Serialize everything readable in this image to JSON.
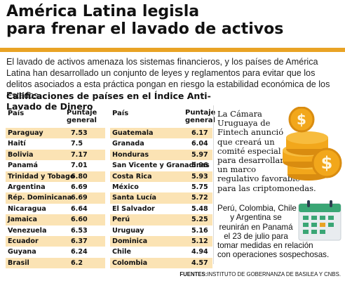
{
  "headline": {
    "line1": "América Latina legisla",
    "line2": "para frenar el lavado de activos"
  },
  "intro": "El lavado de activos amenaza los sistemas financieros, y los países de América Latina han desarrollado un conjunto de leyes y reglamentos para evitar que los delitos asociados a esta práctica pongan en riesgo la estabilidad económica de los Estados.",
  "table_title": "Calificaciones de países en el Índice Anti-Lavado de Dinero",
  "table": {
    "col_country": "País",
    "col_score_line1": "Puntaje",
    "col_score_line2": "general",
    "left_rows": [
      {
        "country": "Paraguay",
        "score": "7.53"
      },
      {
        "country": "Haití",
        "score": "7.5"
      },
      {
        "country": "Bolivia",
        "score": "7.17"
      },
      {
        "country": "Panamá",
        "score": "7.01"
      },
      {
        "country": "Trinidad y Tobago",
        "score": "6.80"
      },
      {
        "country": "Argentina",
        "score": "6.69"
      },
      {
        "country": "Rép. Dominicana",
        "score": "6.69"
      },
      {
        "country": "Nicaragua",
        "score": "6.64"
      },
      {
        "country": "Jamaica",
        "score": "6.60"
      },
      {
        "country": "Venezuela",
        "score": "6.53"
      },
      {
        "country": "Ecuador",
        "score": "6.37"
      },
      {
        "country": "Guyana",
        "score": "6.24"
      },
      {
        "country": "Brasil",
        "score": "6.2"
      }
    ],
    "right_rows": [
      {
        "country": "Guatemala",
        "score": "6.17"
      },
      {
        "country": "Granada",
        "score": "6.04"
      },
      {
        "country": "Honduras",
        "score": "5.97"
      },
      {
        "country": "San Vicente y Granadinas",
        "score": "5.96"
      },
      {
        "country": "Costa Rica",
        "score": "5.93"
      },
      {
        "country": "México",
        "score": "5.75"
      },
      {
        "country": "Santa Lucía",
        "score": "5.72"
      },
      {
        "country": "El Salvador",
        "score": "5.48"
      },
      {
        "country": "Perú",
        "score": "5.25"
      },
      {
        "country": "Uruguay",
        "score": "5.16"
      },
      {
        "country": "Dominica",
        "score": "5.12"
      },
      {
        "country": "Chile",
        "score": "4.94"
      },
      {
        "country": "Colombia",
        "score": "4.57"
      }
    ]
  },
  "note1_lines": [
    "La Cámara",
    "Uruguaya de",
    "Fintech anunció",
    "que creará un",
    "comité especial",
    "para desarrollar",
    "un marco",
    "regulativo favorable",
    "para las criptomonedas."
  ],
  "note2_lines": [
    "Perú, Colombia, Chile",
    "y Argentina se",
    "reunirán en Panamá",
    "el 23 de julio para",
    "tomar medidas en relación",
    "con operaciones sospechosas."
  ],
  "footer": {
    "label": "FUENTES:",
    "text": "INSTITUTO DE GOBERNANZA DE BASILEA Y CNBS."
  },
  "colors": {
    "accent": "#e9a325",
    "row_highlight": "#fbe3b4",
    "coin": "#f2a71b",
    "calendar_green": "#3aa675"
  },
  "icons": [
    "coins-icon",
    "calendar-icon"
  ]
}
